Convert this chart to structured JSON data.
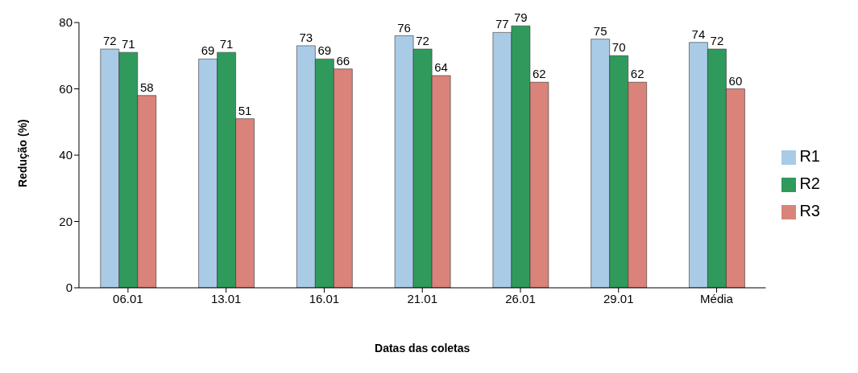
{
  "chart_data": {
    "type": "bar",
    "xlabel": "Datas das coletas",
    "ylabel": "Redução (%)",
    "categories": [
      "06.01",
      "13.01",
      "16.01",
      "21.01",
      "26.01",
      "29.01",
      "Média"
    ],
    "series": [
      {
        "name": "R1",
        "color": "#a9cbe6",
        "values": [
          72,
          69,
          73,
          76,
          77,
          75,
          74
        ]
      },
      {
        "name": "R2",
        "color": "#2f9a5c",
        "values": [
          71,
          71,
          69,
          72,
          79,
          70,
          72
        ]
      },
      {
        "name": "R3",
        "color": "#d9837a",
        "values": [
          58,
          51,
          66,
          64,
          62,
          62,
          60
        ]
      }
    ],
    "ylim": [
      0,
      80
    ],
    "yticks": [
      0,
      20,
      40,
      60,
      80
    ],
    "grid": false,
    "legend": "right",
    "data_labels": true
  }
}
